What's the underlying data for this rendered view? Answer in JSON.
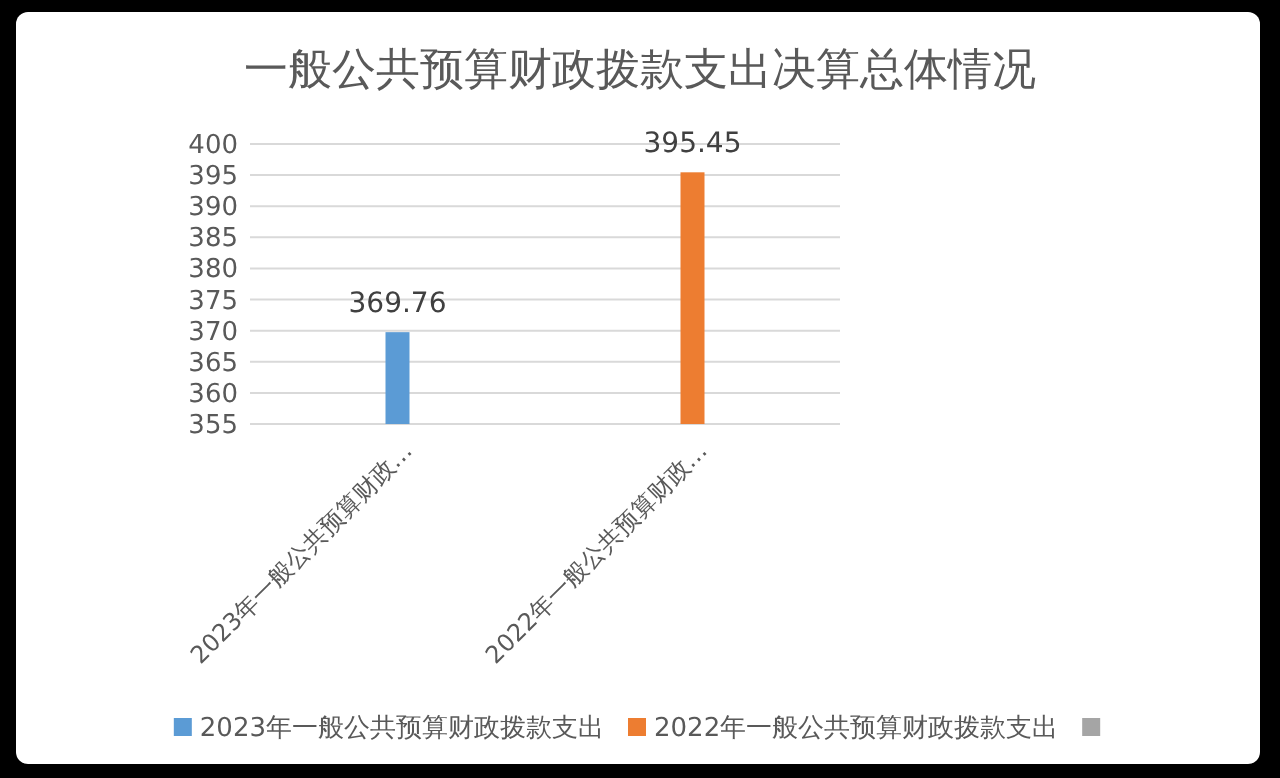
{
  "chart_data": {
    "type": "bar",
    "title": "一般公共预算财政拨款支出决算总体情况",
    "categories": [
      "2023年一般公共预算财政…",
      "2022年一般公共预算财政…"
    ],
    "series": [
      {
        "name": "2023年一般公共预算财政拨款支出",
        "color": "#5b9bd5",
        "values": [
          369.76,
          null
        ]
      },
      {
        "name": "2022年一般公共预算财政拨款支出",
        "color": "#ed7d31",
        "values": [
          null,
          395.45
        ]
      },
      {
        "color": "#a5a5a5",
        "values": [
          null,
          null
        ]
      }
    ],
    "ylim": [
      355,
      400
    ],
    "yticks": [
      355,
      360,
      365,
      370,
      375,
      380,
      385,
      390,
      395,
      400
    ],
    "grid": "y",
    "data_labels": true,
    "legend": "bottom"
  }
}
